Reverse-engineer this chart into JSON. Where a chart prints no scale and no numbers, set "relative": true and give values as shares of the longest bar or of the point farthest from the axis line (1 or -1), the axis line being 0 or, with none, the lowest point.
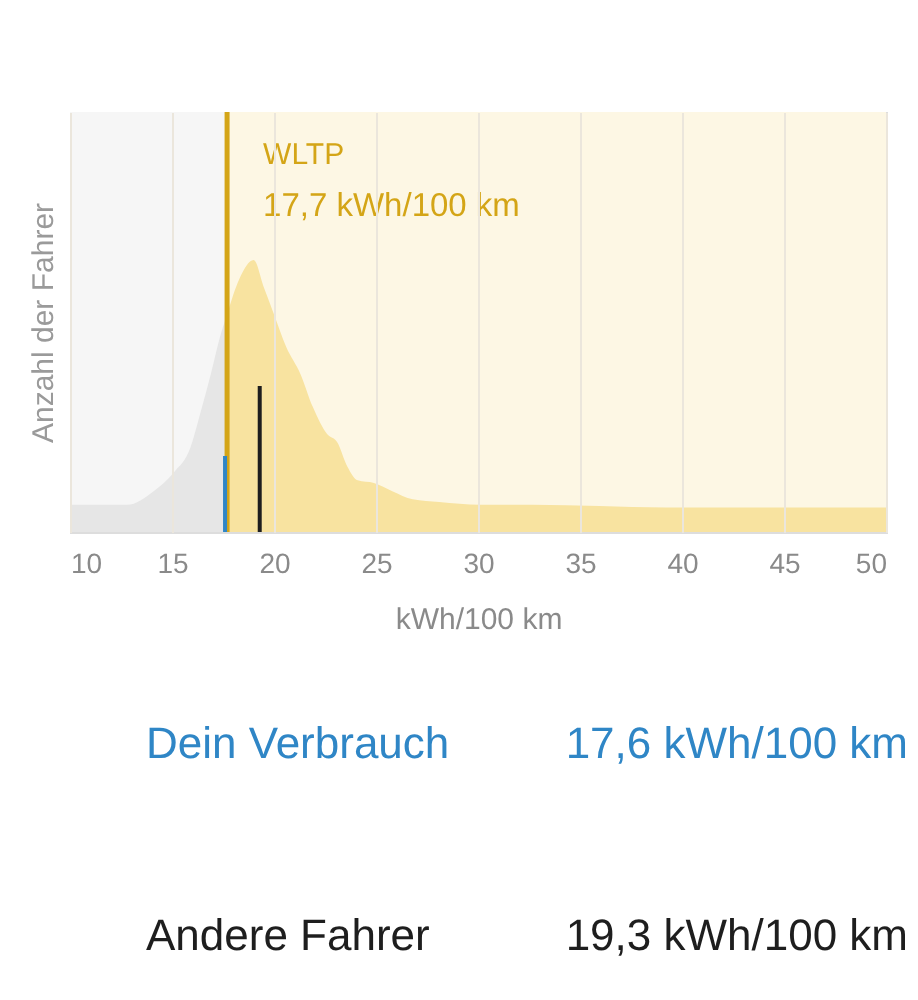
{
  "chart_data": {
    "type": "area",
    "ylabel": "Anzahl der Fahrer",
    "xlabel": "kWh/100 km",
    "relative": true,
    "xlim": [
      10,
      50
    ],
    "xticks": [
      10,
      15,
      20,
      25,
      30,
      35,
      40,
      45,
      50
    ],
    "grid": "x",
    "series": [
      {
        "color": "#e6e6e6",
        "x": [
          10,
          12.8,
          14.1,
          15.1,
          15.9,
          16.4,
          16.9,
          17.4,
          17.7
        ],
        "values": [
          0.1,
          0.1,
          0.15,
          0.22,
          0.31,
          0.44,
          0.58,
          0.73,
          0.8
        ]
      },
      {
        "color": "#f8e3a0",
        "x": [
          17.7,
          18.3,
          19.0,
          19.5,
          20.0,
          20.6,
          21.3,
          21.9,
          22.6,
          23.1,
          23.6,
          24.1,
          24.9,
          25.8,
          26.8,
          28.1,
          30.1,
          32.7,
          39.2,
          50
        ],
        "values": [
          0.8,
          0.93,
          1.0,
          0.9,
          0.8,
          0.68,
          0.58,
          0.46,
          0.36,
          0.33,
          0.24,
          0.19,
          0.18,
          0.15,
          0.12,
          0.11,
          0.1,
          0.1,
          0.09,
          0.09
        ]
      }
    ],
    "bands": [
      {
        "axis": "x",
        "from": 10,
        "to": 17.7,
        "color": "#f6f6f6"
      },
      {
        "axis": "x",
        "from": 17.7,
        "to": 50,
        "color": "#fdf7e4"
      }
    ],
    "ref_lines": [
      {
        "axis": "x",
        "value": 17.7,
        "label": "WLTP",
        "color": "#d4a517"
      },
      {
        "axis": "x",
        "value": 17.6,
        "color": "#2f86c6"
      },
      {
        "axis": "x",
        "value": 19.3,
        "color": "#1e1e1e"
      }
    ],
    "annotations": [
      {
        "text": "17,7 kWh/100 km",
        "x": 17.7
      },
      "Dein Verbrauch",
      "17,6 kWh/100 km",
      "Andere Fahrer",
      "19,3 kWh/100 km"
    ]
  }
}
